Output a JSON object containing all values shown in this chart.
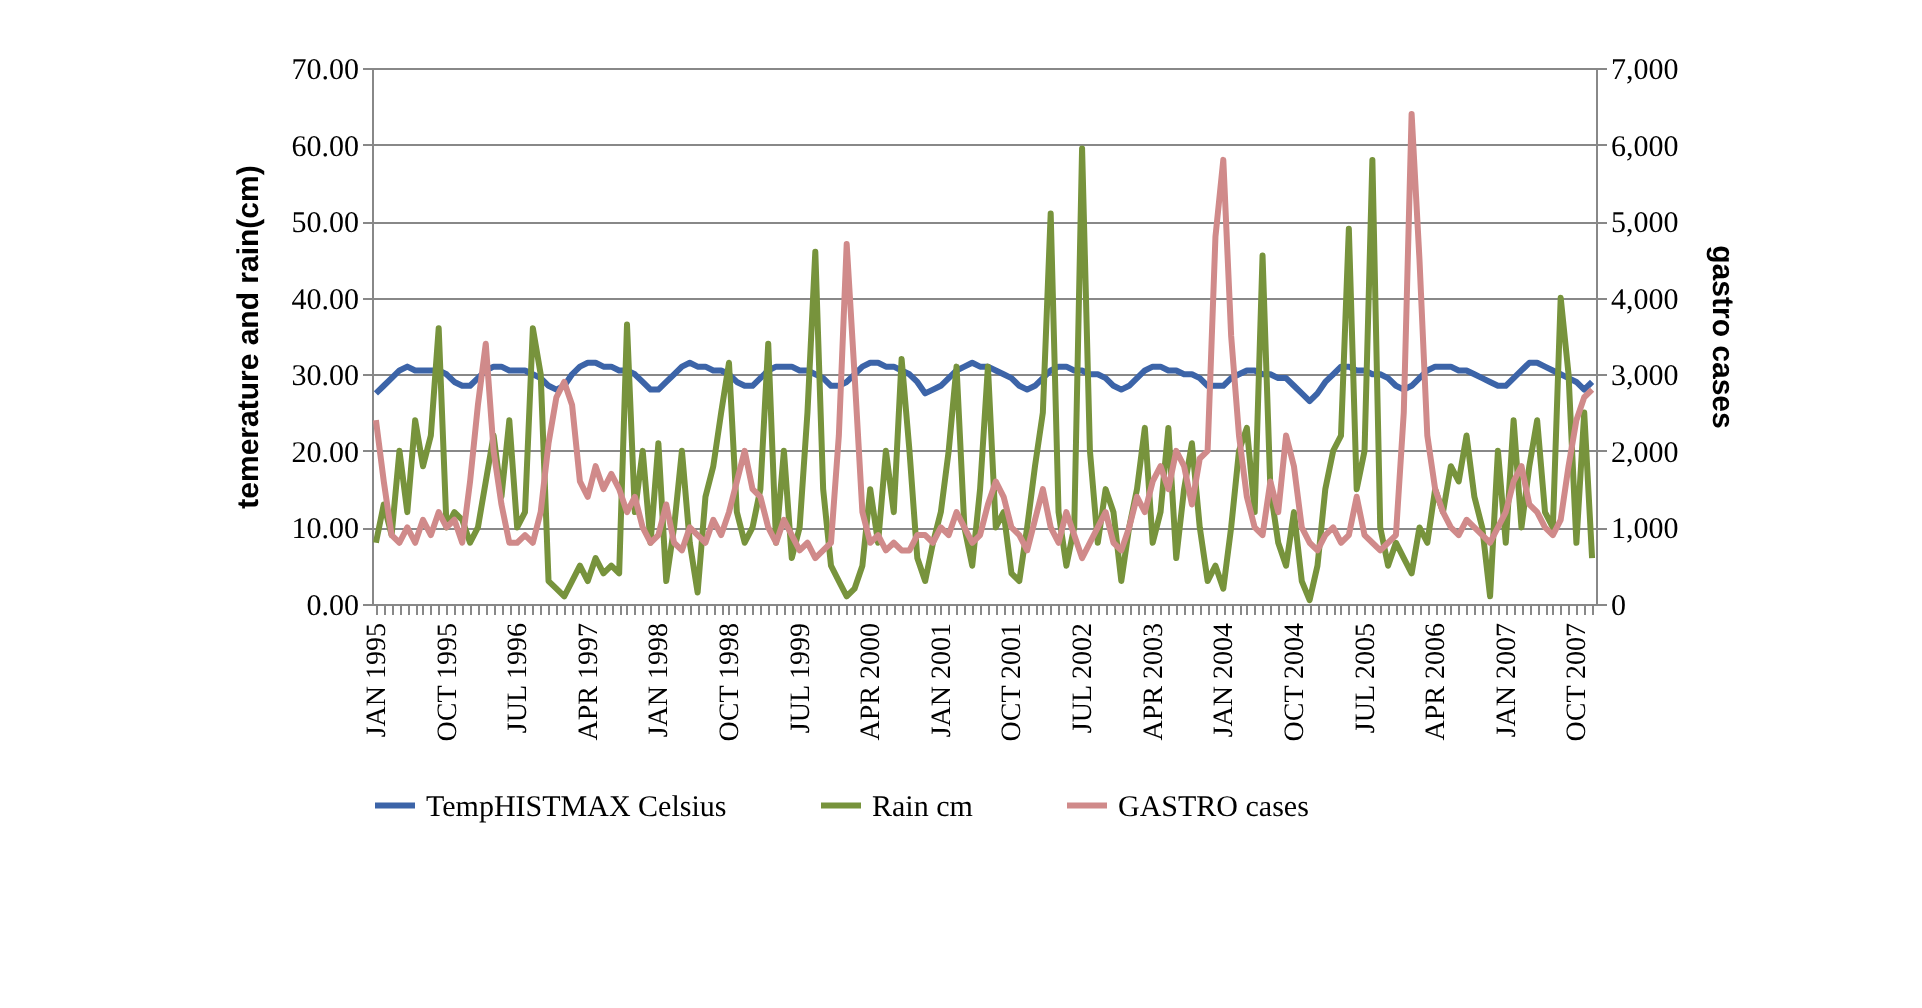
{
  "chart_data": {
    "type": "line",
    "ylabel": "temerature and rain(cm)",
    "y2label": "gastro cases",
    "grid": "y",
    "legend": "bottom",
    "categories": [
      "JAN 1995",
      null,
      null,
      null,
      null,
      null,
      null,
      null,
      null,
      "OCT 1995",
      null,
      null,
      null,
      null,
      null,
      null,
      null,
      null,
      "JUL 1996",
      null,
      null,
      null,
      null,
      null,
      null,
      null,
      null,
      "APR 1997",
      null,
      null,
      null,
      null,
      null,
      null,
      null,
      null,
      "JAN 1998",
      null,
      null,
      null,
      null,
      null,
      null,
      null,
      null,
      "OCT 1998",
      null,
      null,
      null,
      null,
      null,
      null,
      null,
      null,
      "JUL 1999",
      null,
      null,
      null,
      null,
      null,
      null,
      null,
      null,
      "APR 2000",
      null,
      null,
      null,
      null,
      null,
      null,
      null,
      null,
      "JAN 2001",
      null,
      null,
      null,
      null,
      null,
      null,
      null,
      null,
      "OCT 2001",
      null,
      null,
      null,
      null,
      null,
      null,
      null,
      null,
      "JUL 2002",
      null,
      null,
      null,
      null,
      null,
      null,
      null,
      null,
      "APR 2003",
      null,
      null,
      null,
      null,
      null,
      null,
      null,
      null,
      "JAN 2004",
      null,
      null,
      null,
      null,
      null,
      null,
      null,
      null,
      "OCT 2004",
      null,
      null,
      null,
      null,
      null,
      null,
      null,
      null,
      "JUL 2005",
      null,
      null,
      null,
      null,
      null,
      null,
      null,
      null,
      "APR 2006",
      null,
      null,
      null,
      null,
      null,
      null,
      null,
      null,
      "JAN 2007",
      null,
      null,
      null,
      null,
      null,
      null,
      null,
      null,
      "OCT 2007",
      null,
      null
    ],
    "ylim": [
      0,
      70
    ],
    "yticks": [
      {
        "value": 0,
        "label": "0.00"
      },
      {
        "value": 10,
        "label": "10.00"
      },
      {
        "value": 20,
        "label": "20.00"
      },
      {
        "value": 30,
        "label": "30.00"
      },
      {
        "value": 40,
        "label": "40.00"
      },
      {
        "value": 50,
        "label": "50.00"
      },
      {
        "value": 60,
        "label": "60.00"
      },
      {
        "value": 70,
        "label": "70.00"
      }
    ],
    "y2lim": [
      0,
      7000
    ],
    "y2ticks": [
      0,
      {
        "value": 1000,
        "label": "1,000"
      },
      {
        "value": 2000,
        "label": "2,000"
      },
      {
        "value": 3000,
        "label": "3,000"
      },
      {
        "value": 4000,
        "label": "4,000"
      },
      {
        "value": 5000,
        "label": "5,000"
      },
      {
        "value": 6000,
        "label": "6,000"
      },
      {
        "value": 7000,
        "label": "7,000"
      }
    ],
    "series": [
      {
        "name": "TempHISTMAX Celsius",
        "color": "#3c64a8",
        "values": [
          27.5,
          28.5,
          29.5,
          30.5,
          31,
          30.5,
          30.5,
          30.5,
          30.5,
          30,
          29,
          28.5,
          28.5,
          29.5,
          30.5,
          31,
          31,
          30.5,
          30.5,
          30.5,
          30,
          29.5,
          28.5,
          28,
          28.5,
          30,
          31,
          31.5,
          31.5,
          31,
          31,
          30.5,
          30.5,
          30,
          29,
          28,
          28,
          29,
          30,
          31,
          31.5,
          31,
          31,
          30.5,
          30.5,
          30,
          29,
          28.5,
          28.5,
          29.5,
          30.5,
          31,
          31,
          31,
          30.5,
          30.5,
          30,
          29.5,
          28.5,
          28.5,
          29,
          30,
          31,
          31.5,
          31.5,
          31,
          31,
          30.5,
          30,
          29,
          27.5,
          28,
          28.5,
          29.5,
          30.5,
          31,
          31.5,
          31,
          31,
          30.5,
          30,
          29.5,
          28.5,
          28,
          28.5,
          29.5,
          30.5,
          31,
          31,
          30.5,
          30.5,
          30,
          30,
          29.5,
          28.5,
          28,
          28.5,
          29.5,
          30.5,
          31,
          31,
          30.5,
          30.5,
          30,
          30,
          29.5,
          28.5,
          28.5,
          28.5,
          29.5,
          30,
          30.5,
          30.5,
          30,
          30,
          29.5,
          29.5,
          28.5,
          27.5,
          26.5,
          27.5,
          29,
          30,
          31,
          31,
          30.5,
          30.5,
          30,
          30,
          29.5,
          28.5,
          28,
          28.5,
          29.5,
          30.5,
          31,
          31,
          31,
          30.5,
          30.5,
          30,
          29.5,
          29,
          28.5,
          28.5,
          29.5,
          30.5,
          31.5,
          31.5,
          31,
          30.5,
          30,
          29.5,
          29,
          28,
          29
        ]
      },
      {
        "name": "Rain cm",
        "color": "#77933c",
        "values": [
          8,
          13,
          9,
          20,
          12,
          24,
          18,
          22,
          36,
          10,
          12,
          11,
          8,
          10,
          16,
          22,
          14,
          24,
          10,
          12,
          36,
          30,
          3,
          2,
          1,
          3,
          5,
          3,
          6,
          4,
          5,
          4,
          36.5,
          12,
          20,
          8,
          21,
          3,
          10,
          20,
          8,
          1.5,
          14,
          18,
          25,
          31.5,
          12,
          8,
          10,
          15,
          34,
          8,
          20,
          6,
          10,
          25,
          46,
          15,
          5,
          3,
          1,
          2,
          5,
          15,
          8,
          20,
          12,
          32,
          20,
          6,
          3,
          8,
          12,
          20,
          31,
          10,
          5,
          15,
          31,
          10,
          12,
          4,
          3,
          10,
          18,
          25,
          51,
          12,
          5,
          10,
          59.5,
          20,
          8,
          15,
          12,
          3,
          10,
          15,
          23,
          8,
          12,
          23,
          6,
          15,
          21,
          10,
          3,
          5,
          2,
          10,
          20,
          23,
          12,
          45.5,
          15,
          8,
          5,
          12,
          3,
          0.5,
          5,
          15,
          20,
          22,
          49,
          15,
          20,
          58,
          10,
          5,
          8,
          6,
          4,
          10,
          8,
          15,
          12,
          18,
          16,
          22,
          14,
          10,
          1,
          20,
          8,
          24,
          10,
          18,
          24,
          12,
          10,
          40,
          30,
          8,
          25,
          6
        ]
      },
      {
        "name": "GASTRO cases",
        "color": "#d08a8a",
        "axis": "y2",
        "values": [
          2400,
          1600,
          900,
          800,
          1000,
          800,
          1100,
          900,
          1200,
          1000,
          1100,
          800,
          1600,
          2600,
          3400,
          2000,
          1300,
          800,
          800,
          900,
          800,
          1200,
          2100,
          2700,
          2900,
          2600,
          1600,
          1400,
          1800,
          1500,
          1700,
          1500,
          1200,
          1400,
          1000,
          800,
          900,
          1300,
          800,
          700,
          1000,
          900,
          800,
          1100,
          900,
          1200,
          1600,
          2000,
          1500,
          1400,
          1000,
          800,
          1100,
          900,
          700,
          800,
          600,
          700,
          800,
          2200,
          4700,
          3000,
          1200,
          800,
          900,
          700,
          800,
          700,
          700,
          900,
          900,
          800,
          1000,
          900,
          1200,
          1000,
          800,
          900,
          1300,
          1600,
          1400,
          1000,
          900,
          700,
          1100,
          1500,
          1000,
          800,
          1200,
          900,
          600,
          800,
          1000,
          1200,
          800,
          700,
          1000,
          1400,
          1200,
          1600,
          1800,
          1500,
          2000,
          1800,
          1300,
          1900,
          2000,
          4800,
          5800,
          3500,
          2200,
          1400,
          1000,
          900,
          1600,
          1200,
          2200,
          1800,
          1000,
          800,
          700,
          900,
          1000,
          800,
          900,
          1400,
          900,
          800,
          700,
          800,
          900,
          2500,
          6400,
          4500,
          2200,
          1500,
          1200,
          1000,
          900,
          1100,
          1000,
          900,
          800,
          1000,
          1200,
          1600,
          1800,
          1300,
          1200,
          1000,
          900,
          1100,
          1800,
          2400,
          2700,
          2800
        ]
      }
    ]
  }
}
